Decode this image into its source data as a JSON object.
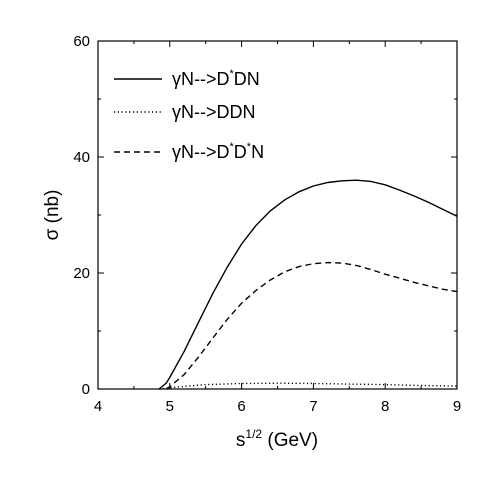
{
  "chart_data": {
    "type": "line",
    "title": "",
    "xlabel": "s",
    "xlabel_sup": "1/2",
    "xlabel_unit": "(GeV)",
    "ylabel": "σ (nb)",
    "xlim": [
      4,
      9
    ],
    "ylim": [
      0,
      60
    ],
    "xticks": [
      4,
      5,
      6,
      7,
      8,
      9
    ],
    "yticks": [
      0,
      20,
      40,
      60
    ],
    "legend_position": "top-left",
    "grid": false,
    "series": [
      {
        "name": "γN-->D*DN",
        "legend_parts": [
          "γN-->D",
          "*",
          "DN"
        ],
        "style": "solid",
        "x": [
          4.85,
          4.95,
          5.0,
          5.2,
          5.4,
          5.6,
          5.8,
          6.0,
          6.2,
          6.4,
          6.6,
          6.8,
          7.0,
          7.2,
          7.4,
          7.6,
          7.8,
          8.0,
          8.2,
          8.4,
          8.6,
          8.8,
          9.0
        ],
        "y": [
          0,
          1.0,
          2.0,
          6.5,
          11.5,
          16.5,
          21.0,
          25.0,
          28.2,
          30.7,
          32.6,
          34.0,
          35.0,
          35.6,
          35.9,
          36.0,
          35.8,
          35.2,
          34.3,
          33.3,
          32.2,
          31.0,
          29.8
        ]
      },
      {
        "name": "γN-->DDN",
        "legend_parts": [
          "γN-->DDN"
        ],
        "style": "dotted",
        "x": [
          4.85,
          5.0,
          5.2,
          5.5,
          6.0,
          6.5,
          7.0,
          7.5,
          8.0,
          8.5,
          9.0
        ],
        "y": [
          0,
          0.2,
          0.45,
          0.75,
          0.95,
          1.0,
          0.95,
          0.85,
          0.75,
          0.6,
          0.5
        ]
      },
      {
        "name": "γN-->D*D*N",
        "legend_parts": [
          "γN-->D",
          "*",
          "D",
          "*",
          "N"
        ],
        "style": "dashed",
        "x": [
          4.95,
          5.0,
          5.2,
          5.4,
          5.6,
          5.8,
          6.0,
          6.2,
          6.4,
          6.6,
          6.8,
          7.0,
          7.2,
          7.4,
          7.6,
          7.8,
          8.0,
          8.2,
          8.4,
          8.6,
          8.8,
          9.0
        ],
        "y": [
          0,
          0.4,
          2.5,
          5.5,
          8.8,
          12.0,
          14.8,
          17.0,
          18.8,
          20.2,
          21.1,
          21.6,
          21.8,
          21.7,
          21.3,
          20.6,
          19.8,
          19.1,
          18.4,
          17.8,
          17.2,
          16.8
        ]
      }
    ]
  }
}
